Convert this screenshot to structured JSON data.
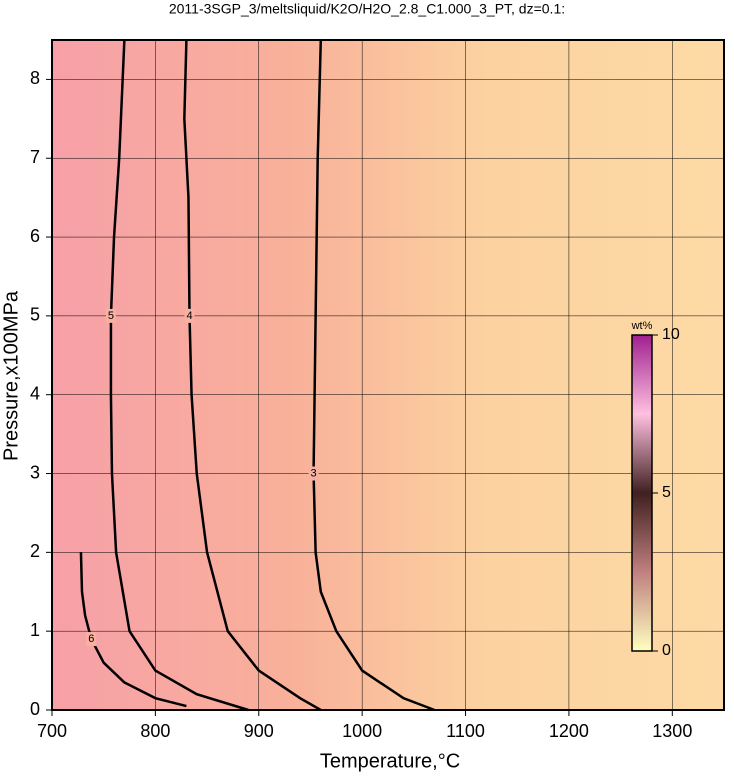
{
  "chart_data": {
    "type": "contour",
    "title": "2011-3SGP_3/meltsliquid/K2O/H2O_2.8_C1.000_3_PT, dz=0.1:",
    "x_label": "Temperature,°C",
    "y_label": "Pressure,x100MPa",
    "xlim": [
      700,
      1350
    ],
    "ylim": [
      0,
      8.5
    ],
    "xticks": [
      700,
      800,
      900,
      1000,
      1100,
      1200,
      1300
    ],
    "yticks": [
      0,
      1,
      2,
      3,
      4,
      5,
      6,
      7,
      8
    ],
    "grid": true,
    "colorbar": {
      "label": "wt%",
      "lim": [
        0,
        10
      ],
      "ticks": [
        0,
        5,
        10
      ],
      "colors": [
        "#ffffc0",
        "#c08080",
        "#402020",
        "#ffc0e0",
        "#a02090"
      ]
    },
    "contours": [
      {
        "level": 3,
        "x": [
          960,
          957,
          955,
          953,
          955,
          960,
          975,
          1000,
          1040,
          1070
        ],
        "y": [
          8.5,
          7,
          5,
          3,
          2,
          1.5,
          1,
          0.5,
          0.15,
          0
        ]
      },
      {
        "level": 4,
        "x": [
          830,
          828,
          832,
          833,
          835,
          840,
          850,
          870,
          900,
          940,
          960
        ],
        "y": [
          8.5,
          7.5,
          6.5,
          5,
          4,
          3,
          2,
          1,
          0.5,
          0.15,
          0
        ]
      },
      {
        "level": 5,
        "x": [
          770,
          765,
          760,
          757,
          757,
          758,
          762,
          775,
          800,
          840,
          890
        ],
        "y": [
          8.5,
          7,
          6,
          5,
          4,
          3,
          2,
          1,
          0.5,
          0.2,
          0
        ]
      },
      {
        "level": 6,
        "x": [
          728,
          729,
          732,
          738,
          750,
          770,
          800,
          830
        ],
        "y": [
          2.0,
          1.5,
          1.2,
          0.9,
          0.6,
          0.35,
          0.15,
          0.05
        ]
      }
    ]
  }
}
